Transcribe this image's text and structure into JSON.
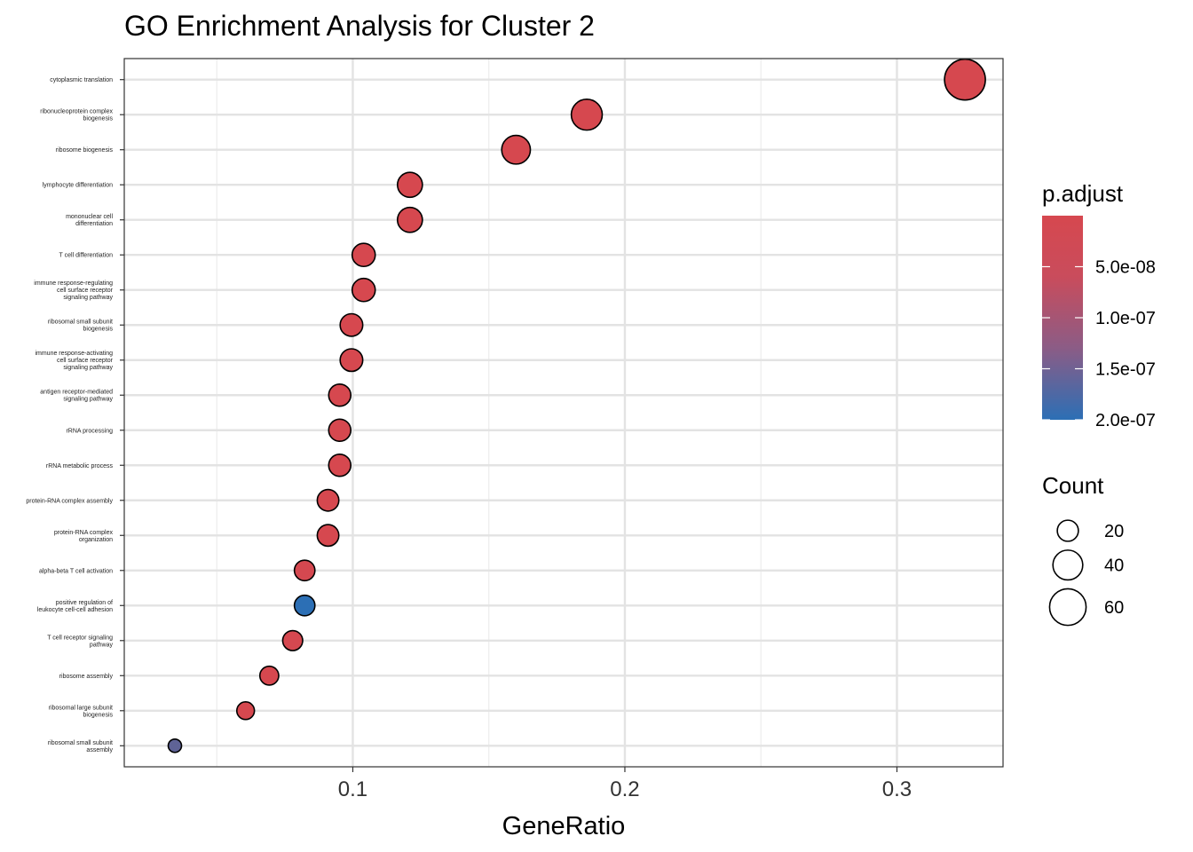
{
  "chart_data": {
    "type": "scatter",
    "title": "GO Enrichment Analysis for Cluster 2",
    "xlabel": "GeneRatio",
    "ylabel": "",
    "xlim": [
      0.016,
      0.339
    ],
    "x_ticks": [
      0.1,
      0.2,
      0.3
    ],
    "x_tick_labels": [
      "0.1",
      "0.2",
      "0.3"
    ],
    "grid": true,
    "color_low": "#2C6FB5",
    "color_high": "#D6484F",
    "categories": [
      [
        "cytoplasmic translation"
      ],
      [
        "ribonucleoprotein complex",
        "biogenesis"
      ],
      [
        "ribosome biogenesis"
      ],
      [
        "lymphocyte differentiation"
      ],
      [
        "mononuclear cell",
        "differentiation"
      ],
      [
        "T cell differentiation"
      ],
      [
        "immune response-regulating",
        "cell surface receptor",
        "signaling pathway"
      ],
      [
        "ribosomal small subunit",
        "biogenesis"
      ],
      [
        "immune response-activating",
        "cell surface receptor",
        "signaling pathway"
      ],
      [
        "antigen receptor-mediated",
        "signaling pathway"
      ],
      [
        "rRNA processing"
      ],
      [
        "rRNA metabolic process"
      ],
      [
        "protein-RNA complex assembly"
      ],
      [
        "protein-RNA complex",
        "organization"
      ],
      [
        "alpha-beta T cell activation"
      ],
      [
        "positive regulation of",
        "leukocyte cell-cell adhesion"
      ],
      [
        "T cell receptor signaling",
        "pathway"
      ],
      [
        "ribosome assembly"
      ],
      [
        "ribosomal large subunit",
        "biogenesis"
      ],
      [
        "ribosomal small subunit",
        "assembly"
      ]
    ],
    "series": [
      {
        "gene_ratio": [
          0.325,
          0.186,
          0.16,
          0.121,
          0.121,
          0.104,
          0.104,
          0.0995,
          0.0995,
          0.0952,
          0.0952,
          0.0952,
          0.0909,
          0.0909,
          0.0823,
          0.0823,
          0.0779,
          0.0693,
          0.0606,
          0.0346
        ],
        "count": [
          75,
          43,
          37,
          28,
          28,
          24,
          24,
          23,
          23,
          22,
          22,
          22,
          21,
          21,
          19,
          19,
          18,
          16,
          14,
          8
        ],
        "p_adjust": [
          1e-30,
          1e-20,
          1e-18,
          1e-12,
          1e-12,
          1e-10,
          1e-10,
          1e-10,
          1e-10,
          1e-10,
          1e-12,
          1e-12,
          1e-12,
          1e-12,
          1e-09,
          2e-07,
          1e-09,
          1e-10,
          1e-10,
          1.4e-07
        ]
      }
    ],
    "legend_color": {
      "title": "p.adjust",
      "min": 1e-30,
      "max": 2e-07,
      "breaks": [
        5e-08,
        1e-07,
        1.5e-07,
        2e-07
      ],
      "labels": [
        "5.0e-08",
        "1.0e-07",
        "1.5e-07",
        "2.0e-07"
      ]
    },
    "legend_size": {
      "title": "Count",
      "breaks": [
        20,
        40,
        60
      ],
      "labels": [
        "20",
        "40",
        "60"
      ]
    }
  }
}
